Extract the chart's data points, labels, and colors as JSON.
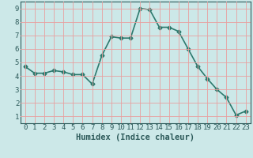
{
  "x": [
    0,
    1,
    2,
    3,
    4,
    5,
    6,
    7,
    8,
    9,
    10,
    11,
    12,
    13,
    14,
    15,
    16,
    17,
    18,
    19,
    20,
    21,
    22,
    23
  ],
  "y": [
    4.7,
    4.2,
    4.2,
    4.4,
    4.3,
    4.1,
    4.1,
    3.4,
    5.5,
    6.9,
    6.8,
    6.8,
    9.0,
    8.9,
    7.6,
    7.6,
    7.3,
    6.0,
    4.7,
    3.8,
    3.0,
    2.4,
    1.1,
    1.4
  ],
  "line_color": "#2d7a6e",
  "marker": "D",
  "marker_size": 2.5,
  "bg_color": "#cce8e8",
  "grid_color": "#e8a0a0",
  "xlabel": "Humidex (Indice chaleur)",
  "xlim": [
    -0.5,
    23.5
  ],
  "ylim": [
    0.5,
    9.5
  ],
  "xticks": [
    0,
    1,
    2,
    3,
    4,
    5,
    6,
    7,
    8,
    9,
    10,
    11,
    12,
    13,
    14,
    15,
    16,
    17,
    18,
    19,
    20,
    21,
    22,
    23
  ],
  "yticks": [
    1,
    2,
    3,
    4,
    5,
    6,
    7,
    8,
    9
  ],
  "tick_fontsize": 6.5,
  "label_fontsize": 7.5,
  "linewidth": 1.2
}
